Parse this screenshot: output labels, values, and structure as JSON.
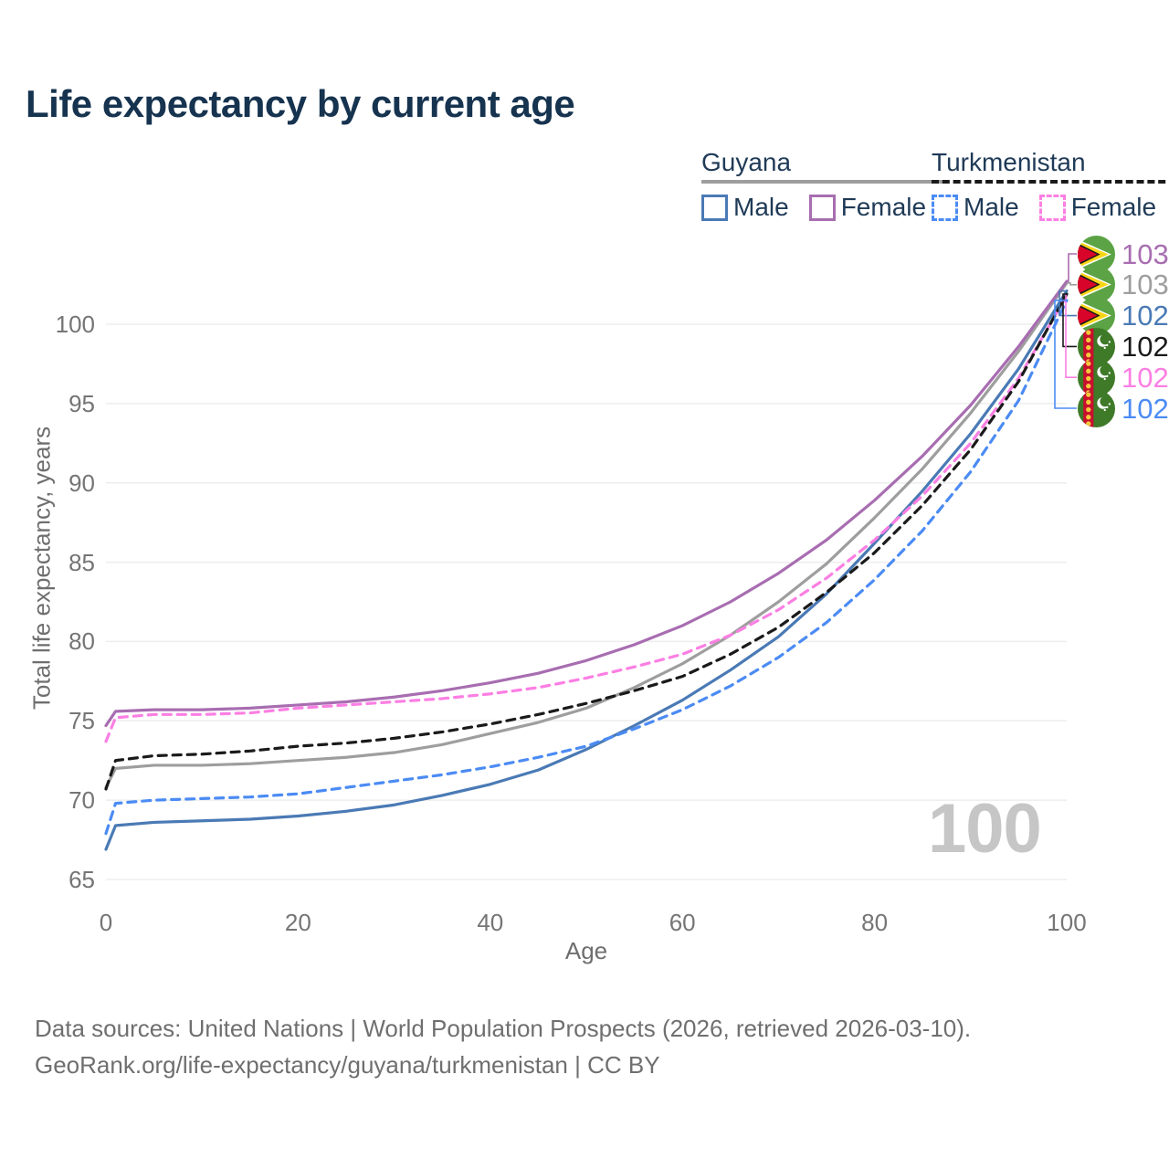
{
  "title": "Life expectancy by current age",
  "legend": {
    "groups": [
      {
        "country": "Guyana",
        "line_style": "solid",
        "line_color": "#9e9e9e",
        "items": [
          {
            "label": "Male",
            "color": "#4a7ab5"
          },
          {
            "label": "Female",
            "color": "#a86db1"
          }
        ]
      },
      {
        "country": "Turkmenistan",
        "line_style": "dashed",
        "line_color": "#1a1a1a",
        "items": [
          {
            "label": "Male",
            "color": "#4b8bf4"
          },
          {
            "label": "Female",
            "color": "#fb7fe3"
          }
        ]
      }
    ]
  },
  "chart_data": {
    "type": "line",
    "title": "Life expectancy by current age",
    "xlabel": "Age",
    "ylabel": "Total life expectancy, years",
    "xlim": [
      0,
      100
    ],
    "ylim": [
      65,
      100
    ],
    "grid": "horizontal",
    "x_ticks": [
      0,
      20,
      40,
      60,
      80,
      100
    ],
    "y_ticks": [
      65,
      70,
      75,
      80,
      85,
      90,
      95,
      100
    ],
    "x": [
      0,
      1,
      5,
      10,
      15,
      20,
      25,
      30,
      35,
      40,
      45,
      50,
      55,
      60,
      65,
      70,
      75,
      80,
      85,
      90,
      95,
      100
    ],
    "series": [
      {
        "name": "Guyana Female",
        "country": "Guyana",
        "sex": "Female",
        "color": "#a86db1",
        "dash": false,
        "values": [
          74.7,
          75.6,
          75.7,
          75.7,
          75.8,
          76.0,
          76.2,
          76.5,
          76.9,
          77.4,
          78.0,
          78.8,
          79.8,
          81.0,
          82.5,
          84.3,
          86.4,
          88.9,
          91.7,
          94.9,
          98.6,
          102.7
        ]
      },
      {
        "name": "Guyana",
        "country": "Guyana",
        "sex": "Both",
        "color": "#9e9e9e",
        "dash": false,
        "values": [
          70.8,
          72.0,
          72.2,
          72.2,
          72.3,
          72.5,
          72.7,
          73.0,
          73.5,
          74.2,
          74.9,
          75.8,
          77.1,
          78.6,
          80.4,
          82.5,
          84.9,
          87.8,
          90.9,
          94.4,
          98.3,
          102.6
        ]
      },
      {
        "name": "Guyana Male",
        "country": "Guyana",
        "sex": "Male",
        "color": "#4a7ab5",
        "dash": false,
        "values": [
          66.9,
          68.4,
          68.6,
          68.7,
          68.8,
          69.0,
          69.3,
          69.7,
          70.3,
          71.0,
          71.9,
          73.2,
          74.7,
          76.3,
          78.2,
          80.3,
          83.0,
          86.2,
          89.5,
          93.1,
          97.2,
          102.1
        ]
      },
      {
        "name": "Turkmenistan",
        "country": "Turkmenistan",
        "sex": "Both",
        "color": "#1a1a1a",
        "dash": true,
        "values": [
          70.7,
          72.5,
          72.8,
          72.9,
          73.1,
          73.4,
          73.6,
          73.9,
          74.3,
          74.8,
          75.4,
          76.1,
          76.9,
          77.8,
          79.2,
          80.9,
          83.1,
          85.6,
          88.6,
          92.1,
          96.4,
          101.9
        ]
      },
      {
        "name": "Turkmenistan Female",
        "country": "Turkmenistan",
        "sex": "Female",
        "color": "#fb7fe3",
        "dash": true,
        "values": [
          73.7,
          75.2,
          75.4,
          75.4,
          75.5,
          75.8,
          76.0,
          76.2,
          76.4,
          76.7,
          77.1,
          77.7,
          78.4,
          79.2,
          80.4,
          82.0,
          84.0,
          86.4,
          89.2,
          92.5,
          96.6,
          101.8
        ]
      },
      {
        "name": "Turkmenistan Male",
        "country": "Turkmenistan",
        "sex": "Male",
        "color": "#4b8bf4",
        "dash": true,
        "values": [
          67.9,
          69.8,
          70.0,
          70.1,
          70.2,
          70.4,
          70.8,
          71.2,
          71.6,
          72.1,
          72.7,
          73.4,
          74.5,
          75.7,
          77.2,
          79.0,
          81.2,
          83.9,
          87.0,
          90.7,
          95.2,
          101.5
        ]
      }
    ],
    "legend_position": "top-right"
  },
  "end_labels": [
    {
      "value": "103",
      "color": "#a86db1",
      "flag": "guyana",
      "series": "Guyana Female"
    },
    {
      "value": "103",
      "color": "#9e9e9e",
      "flag": "guyana",
      "series": "Guyana"
    },
    {
      "value": "102",
      "color": "#4a7ab5",
      "flag": "guyana",
      "series": "Guyana Male"
    },
    {
      "value": "102",
      "color": "#1a1a1a",
      "flag": "turkmenistan",
      "series": "Turkmenistan"
    },
    {
      "value": "102",
      "color": "#fb7fe3",
      "flag": "turkmenistan",
      "series": "Turkmenistan Female"
    },
    {
      "value": "102",
      "color": "#4b8bf4",
      "flag": "turkmenistan",
      "series": "Turkmenistan Male"
    }
  ],
  "watermark": "100",
  "footer": {
    "line1": "Data sources: United Nations | World Population Prospects (2026, retrieved 2026-03-10).",
    "line2": "GeoRank.org/life-expectancy/guyana/turkmenistan | CC BY"
  }
}
